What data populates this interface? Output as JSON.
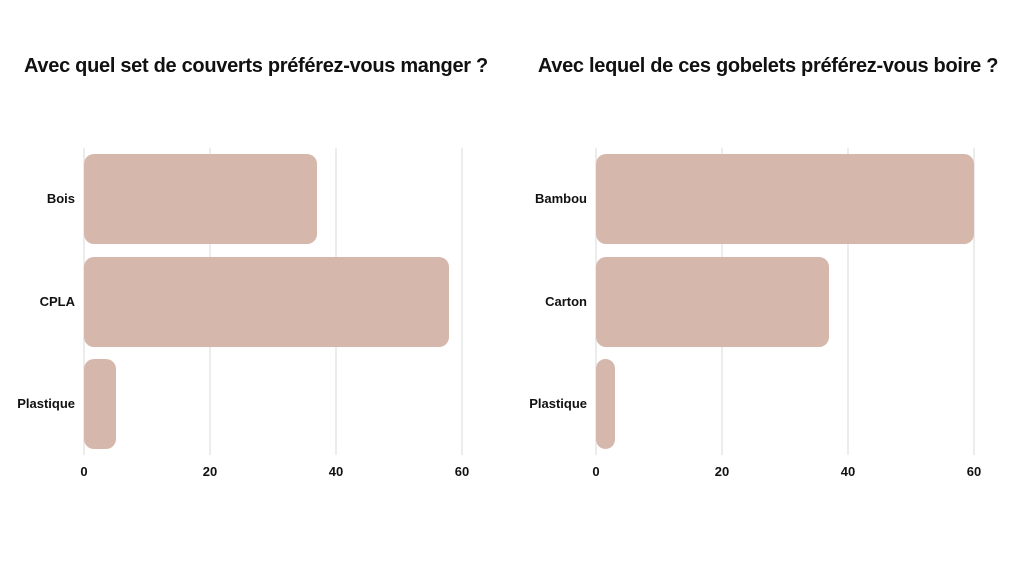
{
  "colors": {
    "bar": "#d6b7ac",
    "grid": "#ececec",
    "text": "#111111",
    "background": "#ffffff"
  },
  "chart_data": [
    {
      "type": "bar",
      "orientation": "horizontal",
      "title": "Avec quel set de couverts préférez-vous manger ?",
      "categories": [
        "Bois",
        "CPLA",
        "Plastique"
      ],
      "values": [
        37,
        58,
        5
      ],
      "xticks": [
        0,
        20,
        40,
        60
      ],
      "xlim": [
        0,
        62
      ],
      "ylabel": "",
      "xlabel": "",
      "grid": true,
      "legend": false
    },
    {
      "type": "bar",
      "orientation": "horizontal",
      "title": "Avec lequel de ces gobelets préférez-vous boire ?",
      "categories": [
        "Bambou",
        "Carton",
        "Plastique"
      ],
      "values": [
        60,
        37,
        3
      ],
      "xticks": [
        0,
        20,
        40,
        60
      ],
      "xlim": [
        0,
        62
      ],
      "ylabel": "",
      "xlabel": "",
      "grid": true,
      "legend": false
    }
  ]
}
